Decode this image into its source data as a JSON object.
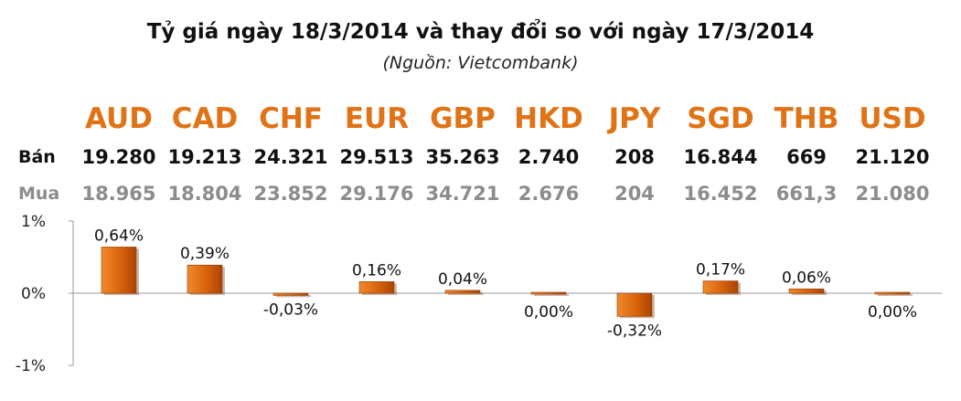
{
  "title": "Tỷ giá ngày 18/3/2014 và thay đổi so với ngày 17/3/2014",
  "source": "(Nguồn: Vietcombank)",
  "rows": {
    "sell_label": "Bán",
    "buy_label": "Mua"
  },
  "currencies": [
    "AUD",
    "CAD",
    "CHF",
    "EUR",
    "GBP",
    "HKD",
    "JPY",
    "SGD",
    "THB",
    "USD"
  ],
  "sell": [
    "19.280",
    "19.213",
    "24.321",
    "29.513",
    "35.263",
    "2.740",
    "208",
    "16.844",
    "669",
    "21.120"
  ],
  "buy": [
    "18.965",
    "18.804",
    "23.852",
    "29.176",
    "34.721",
    "2.676",
    "204",
    "16.452",
    "661,3",
    "21.080"
  ],
  "colors": {
    "accent": "#e07316",
    "bar": "#d9620c",
    "buy_text": "#8c8c8c"
  },
  "chart_data": {
    "type": "bar",
    "categories": [
      "AUD",
      "CAD",
      "CHF",
      "EUR",
      "GBP",
      "HKD",
      "JPY",
      "SGD",
      "THB",
      "USD"
    ],
    "values": [
      0.64,
      0.39,
      -0.03,
      0.16,
      0.04,
      0.0,
      -0.32,
      0.17,
      0.06,
      0.0
    ],
    "data_labels": [
      "0,64%",
      "0,39%",
      "-0,03%",
      "0,16%",
      "0,04%",
      "0,00%",
      "-0,32%",
      "0,17%",
      "0,06%",
      "0,00%"
    ],
    "y_ticks": [
      "1%",
      "0%",
      "-1%"
    ],
    "ylim": [
      -1,
      1
    ],
    "grid": false
  }
}
